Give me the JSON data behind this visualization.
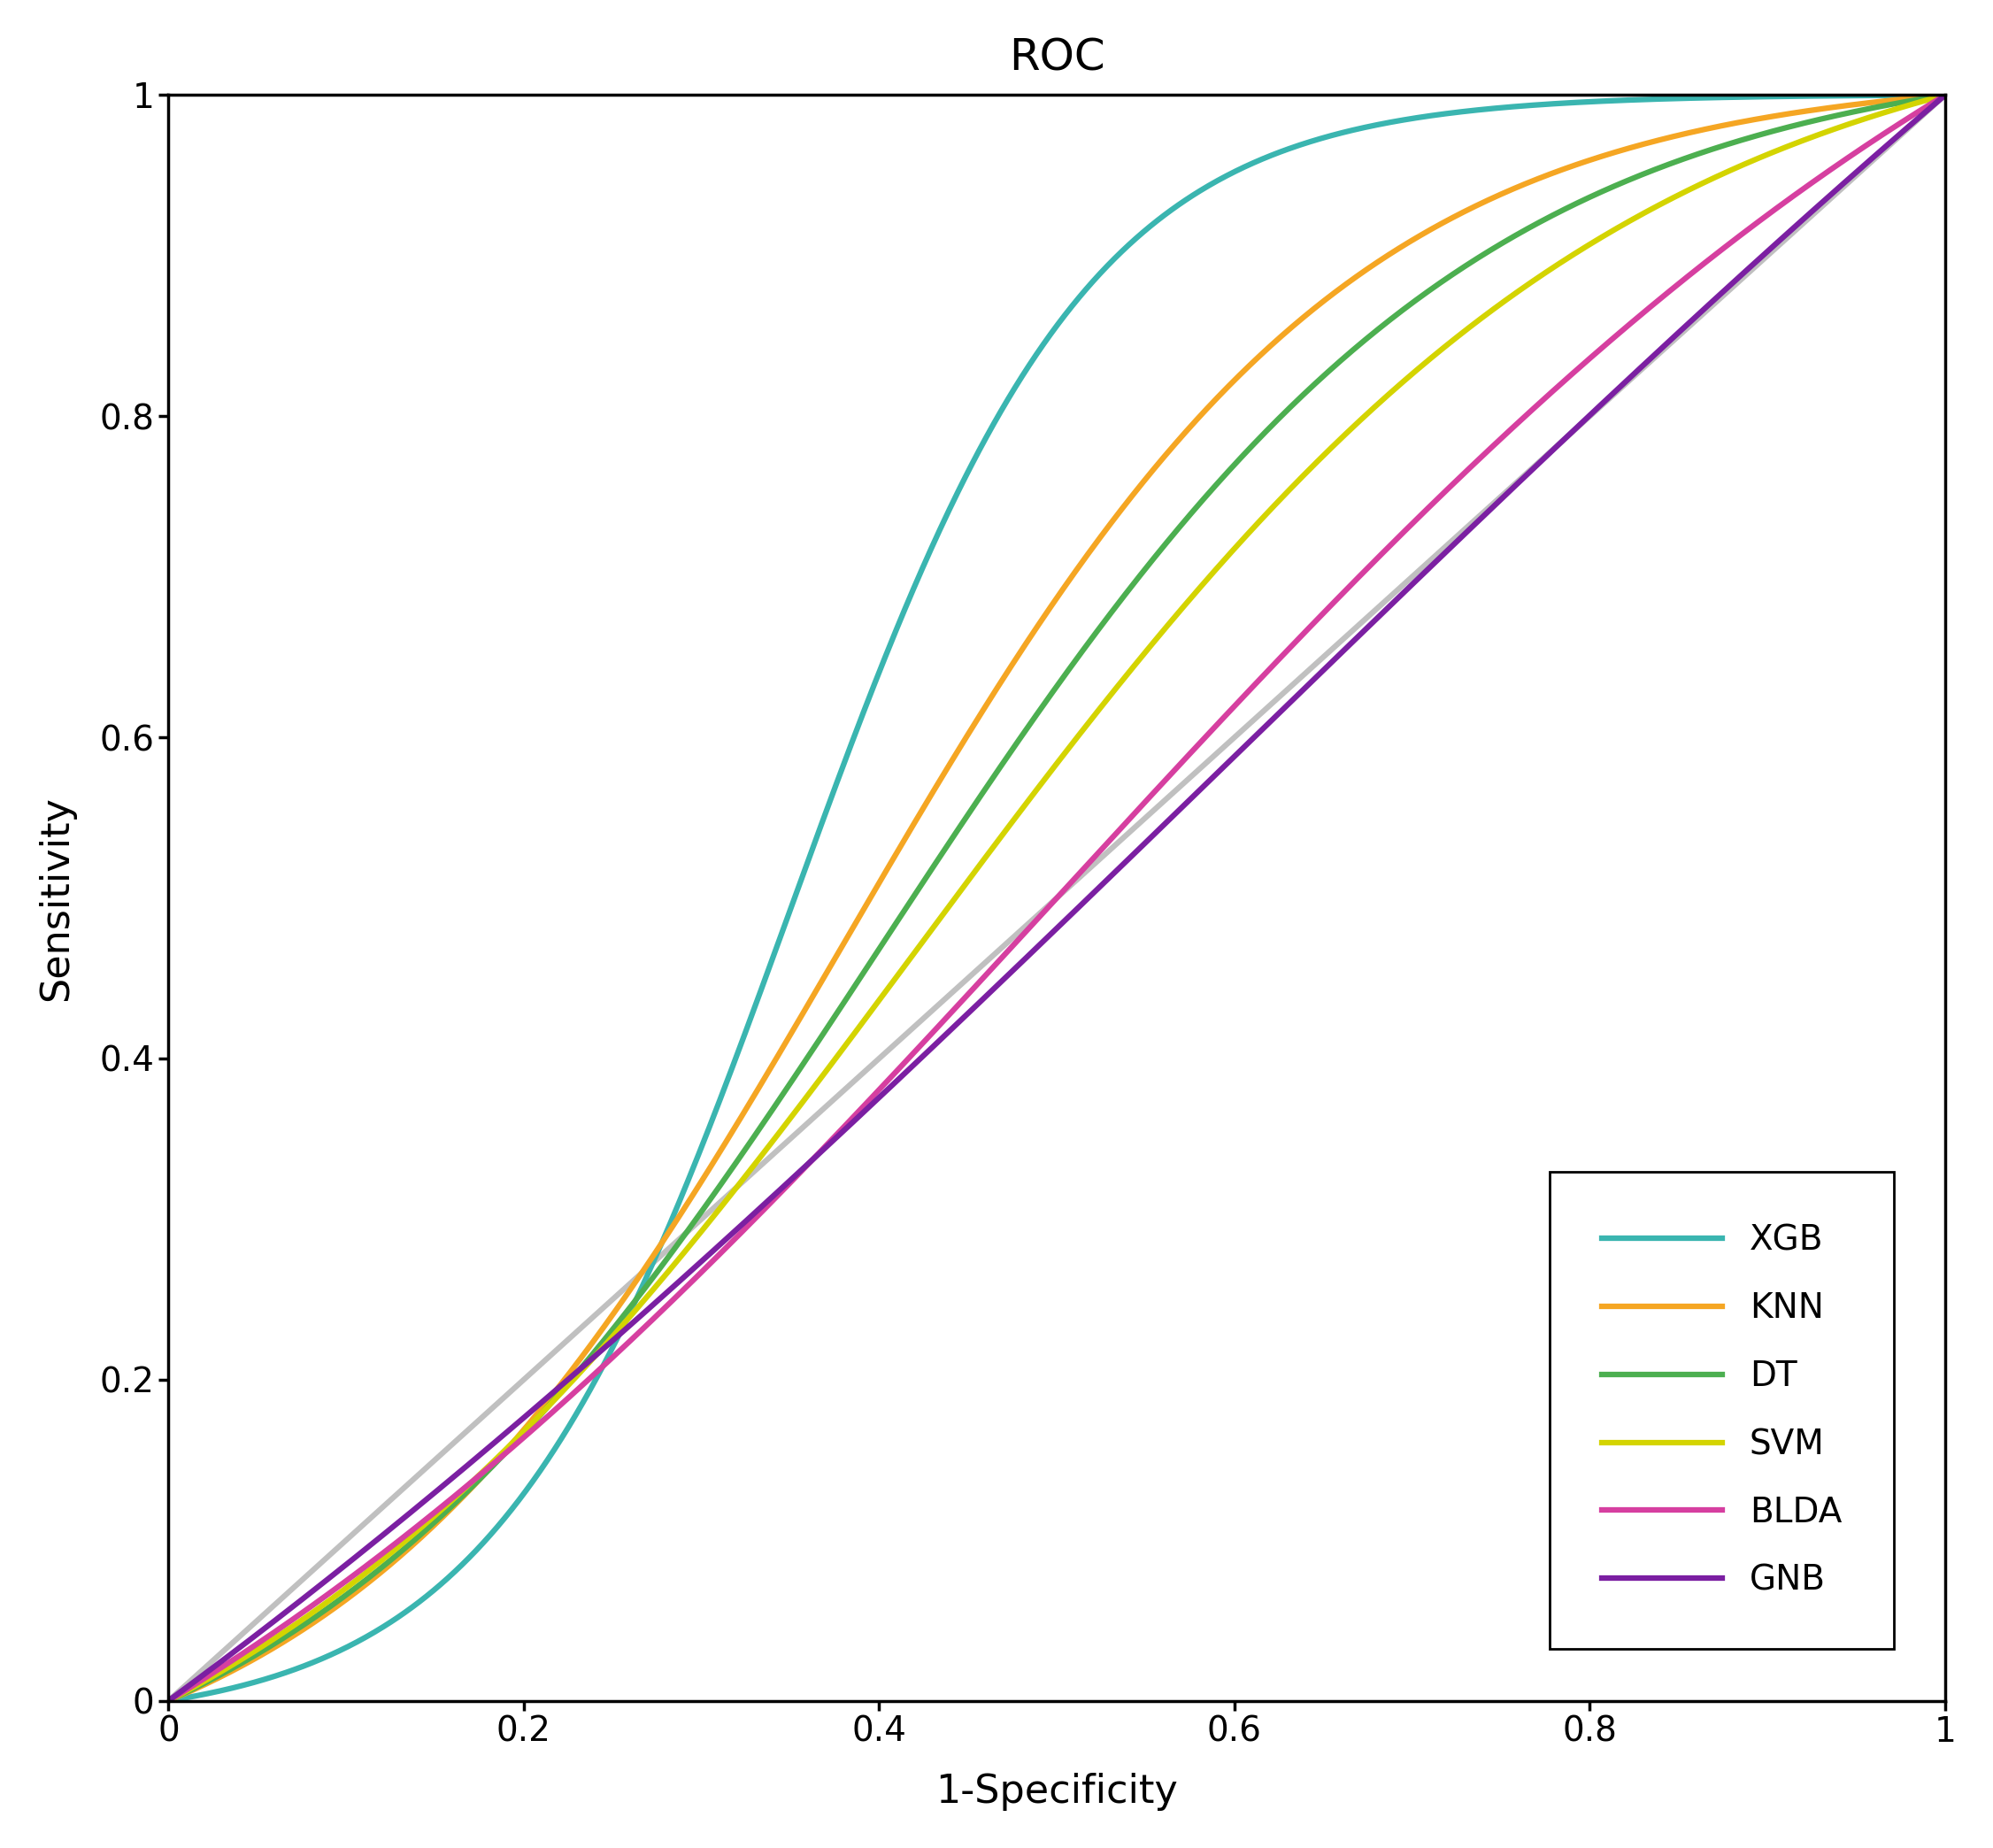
{
  "title": "ROC",
  "xlabel": "1-Specificity",
  "ylabel": "Sensitivity",
  "title_fontsize": 36,
  "label_fontsize": 32,
  "tick_fontsize": 28,
  "legend_fontsize": 28,
  "curves": [
    {
      "label": "XGB",
      "color": "#3ab5b0",
      "alpha": 12.0,
      "beta": 0.35
    },
    {
      "label": "KNN",
      "color": "#f5a623",
      "alpha": 7.0,
      "beta": 0.38
    },
    {
      "label": "DT",
      "color": "#4caf50",
      "alpha": 6.0,
      "beta": 0.4
    },
    {
      "label": "SVM",
      "color": "#d4d400",
      "alpha": 5.0,
      "beta": 0.42
    },
    {
      "label": "BLDA",
      "color": "#d63fa0",
      "alpha": 3.2,
      "beta": 0.5
    },
    {
      "label": "GNB",
      "color": "#7b1fa2",
      "alpha": 1.8,
      "beta": 0.6
    }
  ],
  "diagonal_color": "#c0c0c0",
  "background_color": "#ffffff",
  "xlim": [
    0,
    1
  ],
  "ylim": [
    0,
    1
  ],
  "xticks": [
    0,
    0.2,
    0.4,
    0.6,
    0.8,
    1
  ],
  "yticks": [
    0,
    0.2,
    0.4,
    0.6,
    0.8,
    1
  ],
  "legend_loc": "lower right",
  "linewidth": 4.5
}
